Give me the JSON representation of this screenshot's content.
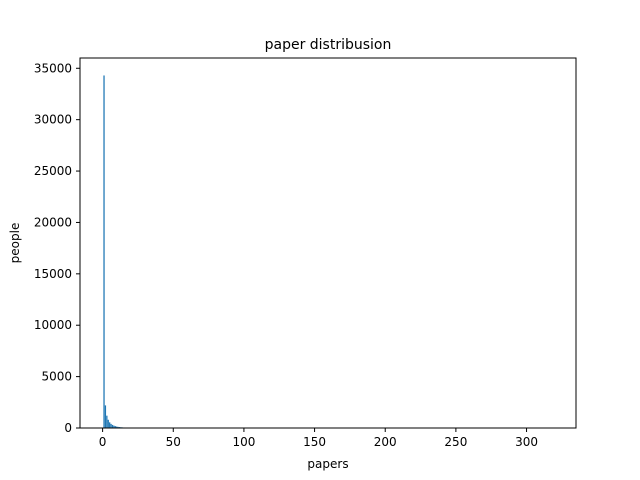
{
  "chart_data": {
    "type": "bar",
    "title": "paper distribusion",
    "xlabel": "papers",
    "ylabel": "people",
    "xlim": [
      -16,
      335
    ],
    "ylim": [
      0,
      36000
    ],
    "xticks": [
      0,
      50,
      100,
      150,
      200,
      250,
      300
    ],
    "yticks": [
      0,
      5000,
      10000,
      15000,
      20000,
      25000,
      30000,
      35000
    ],
    "grid": false,
    "bar_color": "#1f77b4",
    "bins": {
      "x": [
        1,
        2,
        3,
        4,
        5,
        6,
        7,
        8,
        9,
        10,
        11,
        12,
        13,
        14,
        15,
        16,
        17,
        18,
        19,
        20,
        21,
        22,
        23,
        24,
        25,
        26,
        27,
        28,
        29,
        30
      ],
      "values": [
        34300,
        2200,
        1200,
        800,
        550,
        400,
        300,
        230,
        180,
        140,
        110,
        90,
        75,
        60,
        50,
        42,
        35,
        30,
        26,
        22,
        19,
        16,
        14,
        12,
        10,
        9,
        8,
        7,
        6,
        5
      ]
    }
  }
}
